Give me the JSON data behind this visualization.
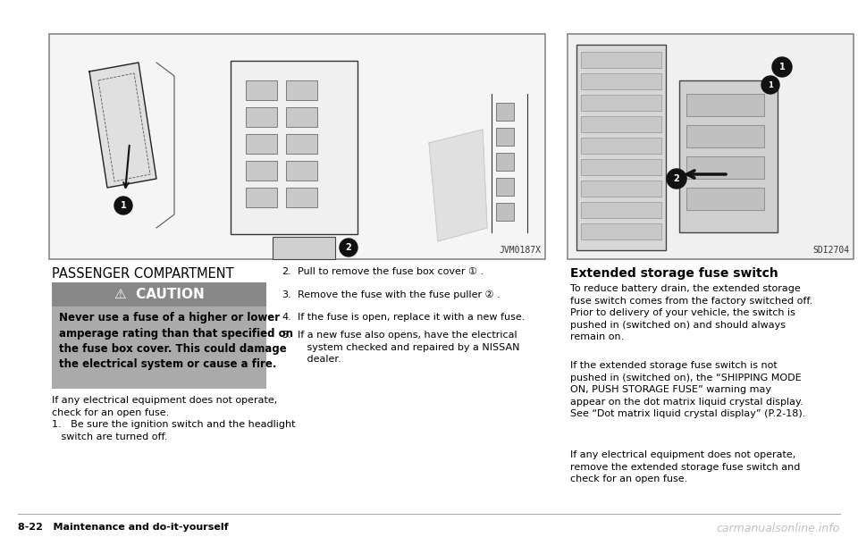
{
  "bg_color": "#ffffff",
  "title_left": "PASSENGER COMPARTMENT",
  "title_right": "Extended storage fuse switch",
  "caution_header": "⚠  CAUTION",
  "caution_text": "Never use a fuse of a higher or lower\namperage rating than that specified on\nthe fuse box cover. This could damage\nthe electrical system or cause a fire.",
  "left_para": "If any electrical equipment does not operate,\ncheck for an open fuse.",
  "left_item1": "Be sure the ignition switch and the headlight\n   switch are turned off.",
  "middle_items": [
    "Pull to remove the fuse box cover ① .",
    "Remove the fuse with the fuse puller ② .",
    "If the fuse is open, replace it with a new fuse.",
    "If a new fuse also opens, have the electrical\n   system checked and repaired by a NISSAN\n   dealer."
  ],
  "right_para1": "To reduce battery drain, the extended storage\nfuse switch comes from the factory switched off.\nPrior to delivery of your vehicle, the switch is\npushed in (switched on) and should always\nremain on.",
  "right_para2": "If the extended storage fuse switch is not\npushed in (switched on), the “SHIPPING MODE\nON, PUSH STORAGE FUSE” warning may\nappear on the dot matrix liquid crystal display.\nSee “Dot matrix liquid crystal display” (P.2-18).",
  "right_para3": "If any electrical equipment does not operate,\nremove the extended storage fuse switch and\ncheck for an open fuse.",
  "footer_left": "8-22   Maintenance and do-it-yourself",
  "footer_right": "carmanualsonline.info",
  "img_label_left": "JVM0187X",
  "img_label_right": "SDI2704"
}
